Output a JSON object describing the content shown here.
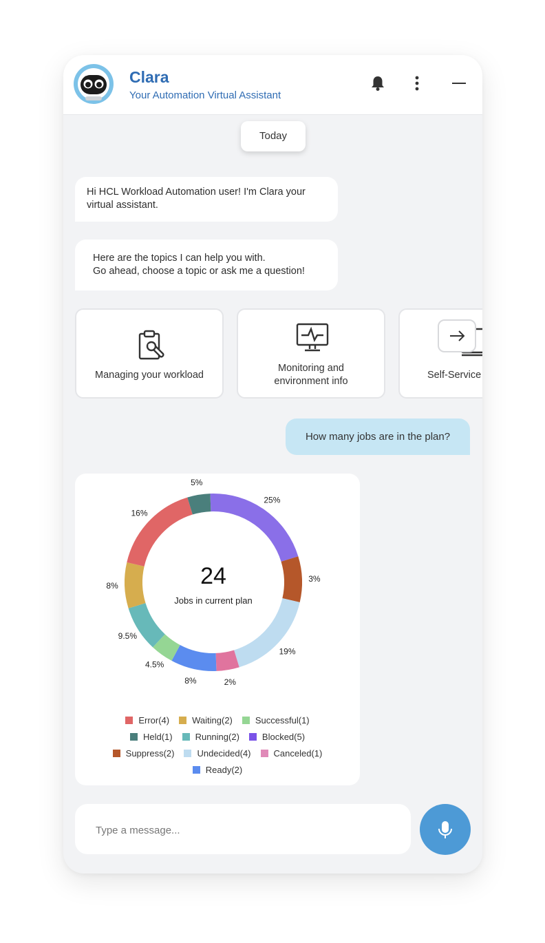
{
  "header": {
    "title": "Clara",
    "subtitle": "Your Automation Virtual Assistant",
    "icons": [
      "bell-icon",
      "kebab-menu-icon",
      "minimize-icon"
    ]
  },
  "chat": {
    "date_chip": "Today",
    "bot_messages": [
      "Hi HCL Workload Automation user! I'm Clara your virtual assistant.",
      "Here are the topics I can help you with.\nGo ahead, choose a topic or ask me a question!"
    ],
    "user_message": "How many jobs are in the plan?"
  },
  "topics": [
    {
      "label": "Managing your workload",
      "icon": "clipboard-wrench-icon"
    },
    {
      "label": "Monitoring and environment info",
      "icon": "monitor-pulse-icon"
    },
    {
      "label": "Self-Service",
      "icon": "monitor-icon"
    }
  ],
  "chart_data": {
    "type": "pie",
    "variant": "donut",
    "center_value": "24",
    "center_label": "Jobs in current plan",
    "slices": [
      {
        "name": "Blocked",
        "count": 5,
        "percent_label": "25%",
        "color": "#8a6fe8"
      },
      {
        "name": "Suppress",
        "count": 2,
        "percent_label": "3%",
        "color": "#b5572a"
      },
      {
        "name": "Undecided",
        "count": 4,
        "percent_label": "19%",
        "color": "#bedcf0"
      },
      {
        "name": "Canceled",
        "count": 1,
        "percent_label": "2%",
        "color": "#e0749e"
      },
      {
        "name": "Ready",
        "count": 2,
        "percent_label": "8%",
        "color": "#5b8cef"
      },
      {
        "name": "Successful",
        "count": 1,
        "percent_label": "4.5%",
        "color": "#95d694"
      },
      {
        "name": "Running",
        "count": 2,
        "percent_label": "9.5%",
        "color": "#67b9b9"
      },
      {
        "name": "Waiting",
        "count": 2,
        "percent_label": "8%",
        "color": "#d6ad4e"
      },
      {
        "name": "Error",
        "count": 4,
        "percent_label": "16%",
        "color": "#e06666"
      },
      {
        "name": "Held",
        "count": 1,
        "percent_label": "5%",
        "color": "#4a7f7c"
      }
    ],
    "legend": [
      [
        "Error(4)",
        "Waiting(2)",
        "Successful(1)"
      ],
      [
        "Held(1)",
        "Running(2)",
        "Blocked(5)"
      ],
      [
        "Suppress(2)",
        "Undecided(4)",
        "Canceled(1)"
      ],
      [
        "Ready(2)"
      ]
    ],
    "legend_colors": [
      [
        "#e06666",
        "#d6ad4e",
        "#95d694"
      ],
      [
        "#4a7f7c",
        "#67b9b9",
        "#7a52e8"
      ],
      [
        "#b5572a",
        "#bedcf0",
        "#e08ab8"
      ],
      [
        "#5b8cef"
      ]
    ]
  },
  "composer": {
    "placeholder": "Type a message...",
    "mic_icon": "microphone-icon"
  },
  "colors": {
    "brand": "#2f6cb3",
    "user_bubble": "#c6e6f4",
    "mic_button": "#4d9ad6"
  }
}
